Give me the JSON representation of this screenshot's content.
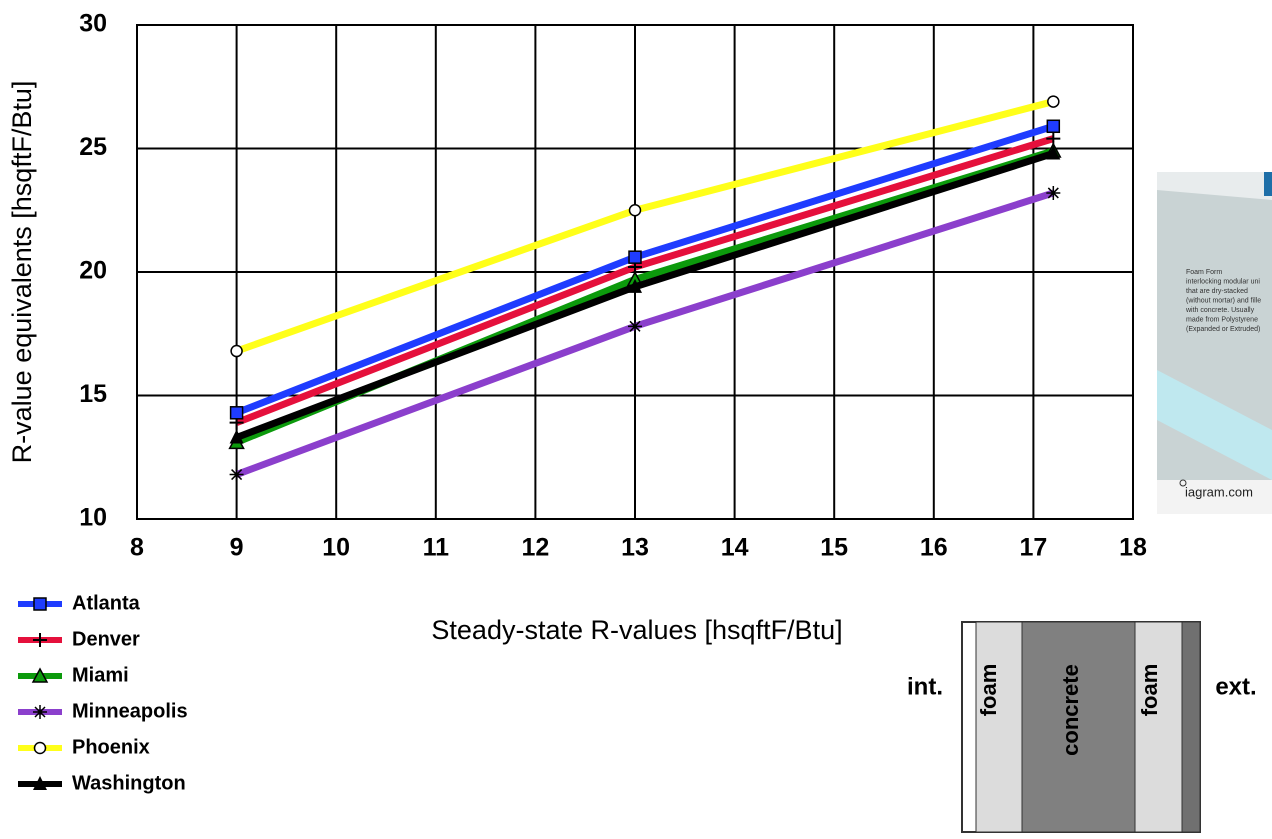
{
  "chart_data": {
    "type": "line",
    "x_label": "Steady-state R-values [hsqftF/Btu]",
    "y_label": "R-value equivalents [hsqftF/Btu]",
    "x": [
      9,
      13,
      17.2
    ],
    "series": [
      {
        "name": "Atlanta",
        "color": "#1f3cff",
        "marker": "square",
        "values": [
          14.3,
          20.6,
          25.9
        ]
      },
      {
        "name": "Denver",
        "color": "#e5103c",
        "marker": "plus",
        "values": [
          13.9,
          20.2,
          25.4
        ]
      },
      {
        "name": "Miami",
        "color": "#0c9a0c",
        "marker": "triangle",
        "values": [
          13.1,
          19.7,
          24.9
        ]
      },
      {
        "name": "Minneapolis",
        "color": "#8b3fcc",
        "marker": "asterisk",
        "values": [
          11.8,
          17.8,
          23.2
        ]
      },
      {
        "name": "Phoenix",
        "color": "#ffff1a",
        "marker": "circle",
        "values": [
          16.8,
          22.5,
          26.9
        ]
      },
      {
        "name": "Washington",
        "color": "#000000",
        "marker": "star",
        "values": [
          13.3,
          19.4,
          24.8
        ]
      }
    ],
    "xlim": [
      8,
      18
    ],
    "xticks": [
      8,
      9,
      10,
      11,
      12,
      13,
      14,
      15,
      16,
      17,
      18
    ],
    "ylim": [
      10,
      30
    ],
    "yticks": [
      10,
      15,
      20,
      25,
      30
    ],
    "grid": true,
    "legend": "below-left"
  },
  "inset": {
    "lines": [
      "Foam Form",
      "interlocking modular uni",
      "that are dry-stacked",
      "(without mortar) and fille",
      "with concrete. Usually",
      "made from Polystyrene",
      "(Expanded or Extruded)"
    ],
    "source": "iagram.com"
  },
  "diagram": {
    "left": "int.",
    "right": "ext.",
    "layers": [
      "foam",
      "concrete",
      "foam"
    ]
  }
}
